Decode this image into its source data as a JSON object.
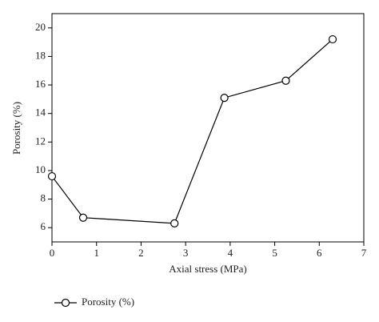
{
  "chart_data": {
    "type": "line",
    "xlabel": "Axial stress (MPa)",
    "ylabel": "Porosity (%)",
    "series": [
      {
        "name": "Porosity (%)",
        "color": "#000000",
        "x": [
          0,
          0.7,
          2.75,
          3.87,
          5.25,
          6.3
        ],
        "values": [
          9.6,
          6.7,
          6.3,
          15.1,
          16.3,
          19.2
        ]
      }
    ],
    "xlim": [
      0,
      7
    ],
    "ylim": [
      5,
      21
    ],
    "xticks": [
      0,
      1,
      2,
      3,
      4,
      5,
      6,
      7
    ],
    "yticks": [
      6,
      8,
      10,
      12,
      14,
      16,
      18,
      20
    ],
    "grid": false,
    "legend": "bottom-left"
  }
}
